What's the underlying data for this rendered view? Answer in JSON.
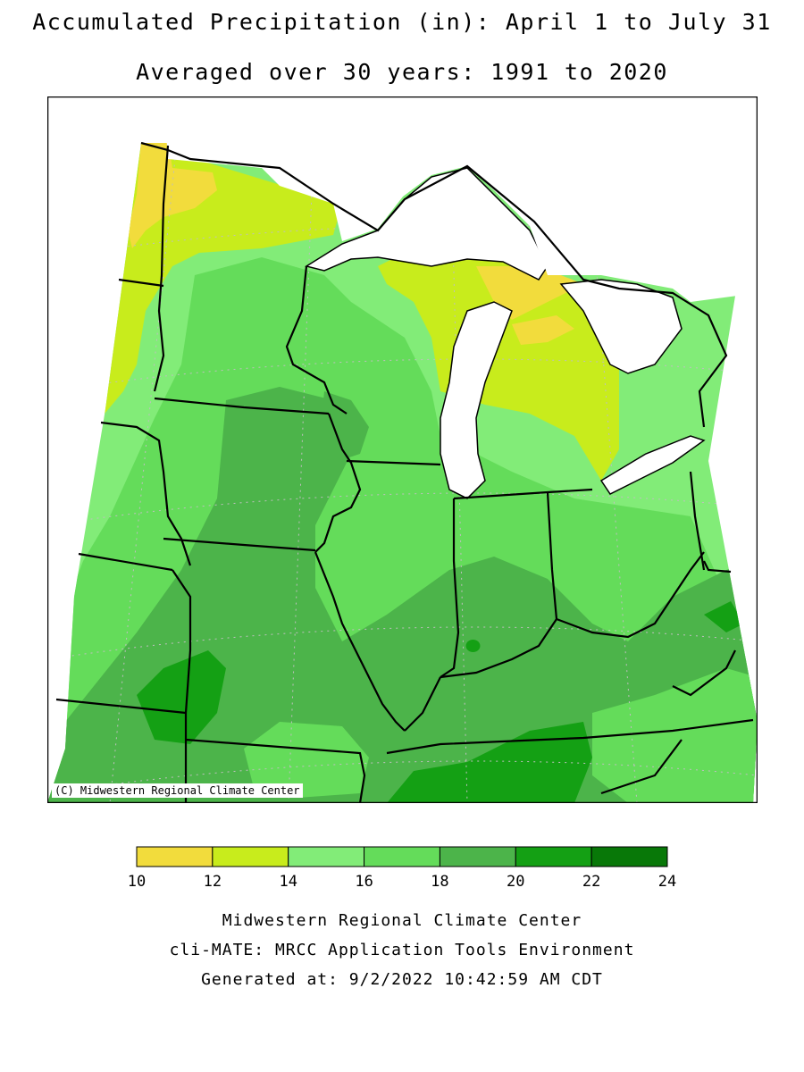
{
  "title": "Accumulated Precipitation (in): April 1 to July 31",
  "subtitle": "Averaged over 30 years: 1991 to 2020",
  "credit": "(C) Midwestern Regional Climate Center",
  "legend": {
    "bins": [
      {
        "from": 10,
        "to": 12,
        "color": "#f2dc3c"
      },
      {
        "from": 12,
        "to": 14,
        "color": "#c8ec1c"
      },
      {
        "from": 14,
        "to": 16,
        "color": "#82ec78"
      },
      {
        "from": 16,
        "to": 18,
        "color": "#64dc5a"
      },
      {
        "from": 18,
        "to": 20,
        "color": "#4cb44a"
      },
      {
        "from": 20,
        "to": 22,
        "color": "#14a014"
      },
      {
        "from": 22,
        "to": 24,
        "color": "#087808"
      }
    ],
    "ticks": [
      "10",
      "12",
      "14",
      "16",
      "18",
      "20",
      "22",
      "24"
    ]
  },
  "footer": {
    "line1": "Midwestern Regional Climate Center",
    "line2": "cli-MATE: MRCC Application Tools Environment",
    "line3": "Generated at: 9/2/2022 10:42:59 AM CDT"
  }
}
